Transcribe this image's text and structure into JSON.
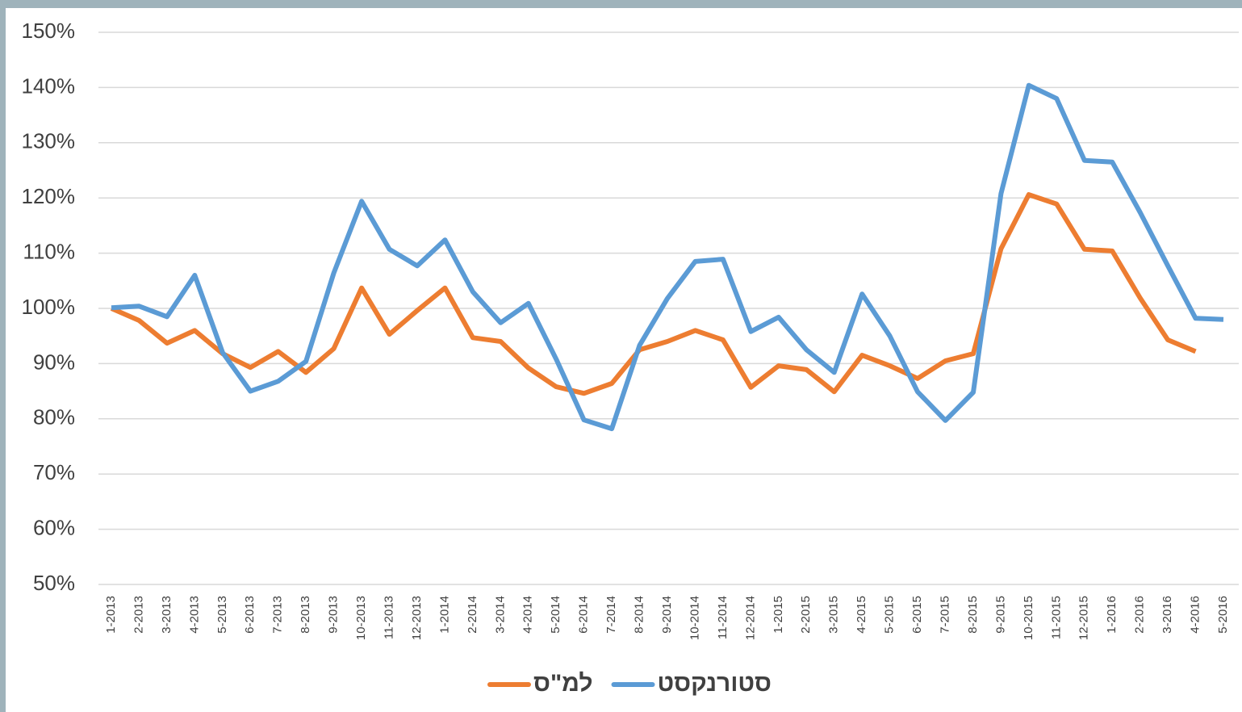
{
  "chart_data": {
    "type": "line",
    "categories": [
      "1-2013",
      "2-2013",
      "3-2013",
      "4-2013",
      "5-2013",
      "6-2013",
      "7-2013",
      "8-2013",
      "9-2013",
      "10-2013",
      "11-2013",
      "12-2013",
      "1-2014",
      "2-2014",
      "3-2014",
      "4-2014",
      "5-2014",
      "6-2014",
      "7-2014",
      "8-2014",
      "9-2014",
      "10-2014",
      "11-2014",
      "12-2014",
      "1-2015",
      "2-2015",
      "3-2015",
      "4-2015",
      "5-2015",
      "6-2015",
      "7-2015",
      "8-2015",
      "9-2015",
      "10-2015",
      "11-2015",
      "12-2015",
      "1-2016",
      "2-2016",
      "3-2016",
      "4-2016",
      "5-2016"
    ],
    "series": [
      {
        "name": "למ\"ס",
        "color": "#ed7d31",
        "values": [
          100,
          97.8,
          93.7,
          96,
          91.8,
          89.3,
          92.2,
          88.4,
          92.7,
          103.7,
          95.3,
          99.6,
          103.7,
          94.7,
          94,
          89.2,
          85.8,
          84.6,
          86.4,
          92.5,
          94,
          96,
          94.3,
          85.7,
          89.6,
          88.9,
          84.9,
          91.5,
          89.6,
          87.3,
          90.5,
          91.8,
          110.8,
          120.6,
          118.9,
          110.7,
          110.4,
          101.9,
          94.3,
          92.2,
          null
        ]
      },
      {
        "name": "סטורנקסט",
        "color": "#5b9bd5",
        "values": [
          100.1,
          100.4,
          98.5,
          106,
          92,
          85,
          86.8,
          90.4,
          106.4,
          119.4,
          110.7,
          107.7,
          112.4,
          103,
          97.4,
          100.9,
          90.8,
          79.8,
          78.2,
          93.3,
          101.8,
          108.5,
          108.9,
          95.8,
          98.4,
          92.5,
          88.4,
          102.6,
          95,
          84.9,
          79.7,
          84.8,
          120.8,
          140.4,
          138,
          126.8,
          126.5,
          117.4,
          107.7,
          98.2,
          98
        ]
      }
    ],
    "ylim": [
      50,
      150
    ],
    "yticks": [
      {
        "value": 50,
        "label": "50%"
      },
      {
        "value": 60,
        "label": "60%"
      },
      {
        "value": 70,
        "label": "70%"
      },
      {
        "value": 80,
        "label": "80%"
      },
      {
        "value": 90,
        "label": "90%"
      },
      {
        "value": 100,
        "label": "100%"
      },
      {
        "value": 110,
        "label": "110%"
      },
      {
        "value": 120,
        "label": "120%"
      },
      {
        "value": 130,
        "label": "130%"
      },
      {
        "value": 140,
        "label": "140%"
      },
      {
        "value": 150,
        "label": "150%"
      }
    ],
    "grid": true,
    "legend": "bottom"
  }
}
